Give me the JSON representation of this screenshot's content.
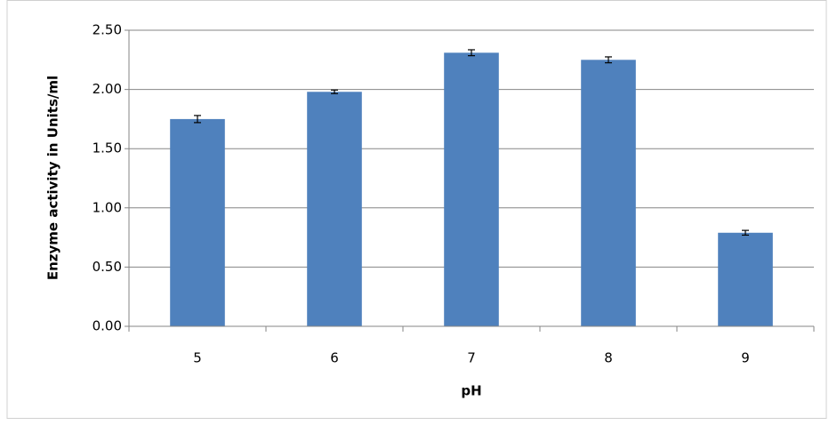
{
  "chart_data": {
    "type": "bar",
    "x_label": "pH",
    "y_label": "Enzyme activity in Units/ml",
    "categories": [
      "5",
      "6",
      "7",
      "8",
      "9"
    ],
    "values": [
      1.75,
      1.98,
      2.31,
      2.25,
      0.79
    ],
    "errors": [
      0.03,
      0.015,
      0.025,
      0.025,
      0.02
    ],
    "color": "#4f81bd",
    "ylim": [
      0,
      2.5
    ],
    "yticks": [
      {
        "value": 0,
        "label": "0.00"
      },
      {
        "value": 0.5,
        "label": "0.50"
      },
      {
        "value": 1,
        "label": "1.00"
      },
      {
        "value": 1.5,
        "label": "1.50"
      },
      {
        "value": 2,
        "label": "2.00"
      },
      {
        "value": 2.5,
        "label": "2.50"
      }
    ],
    "grid": true
  }
}
